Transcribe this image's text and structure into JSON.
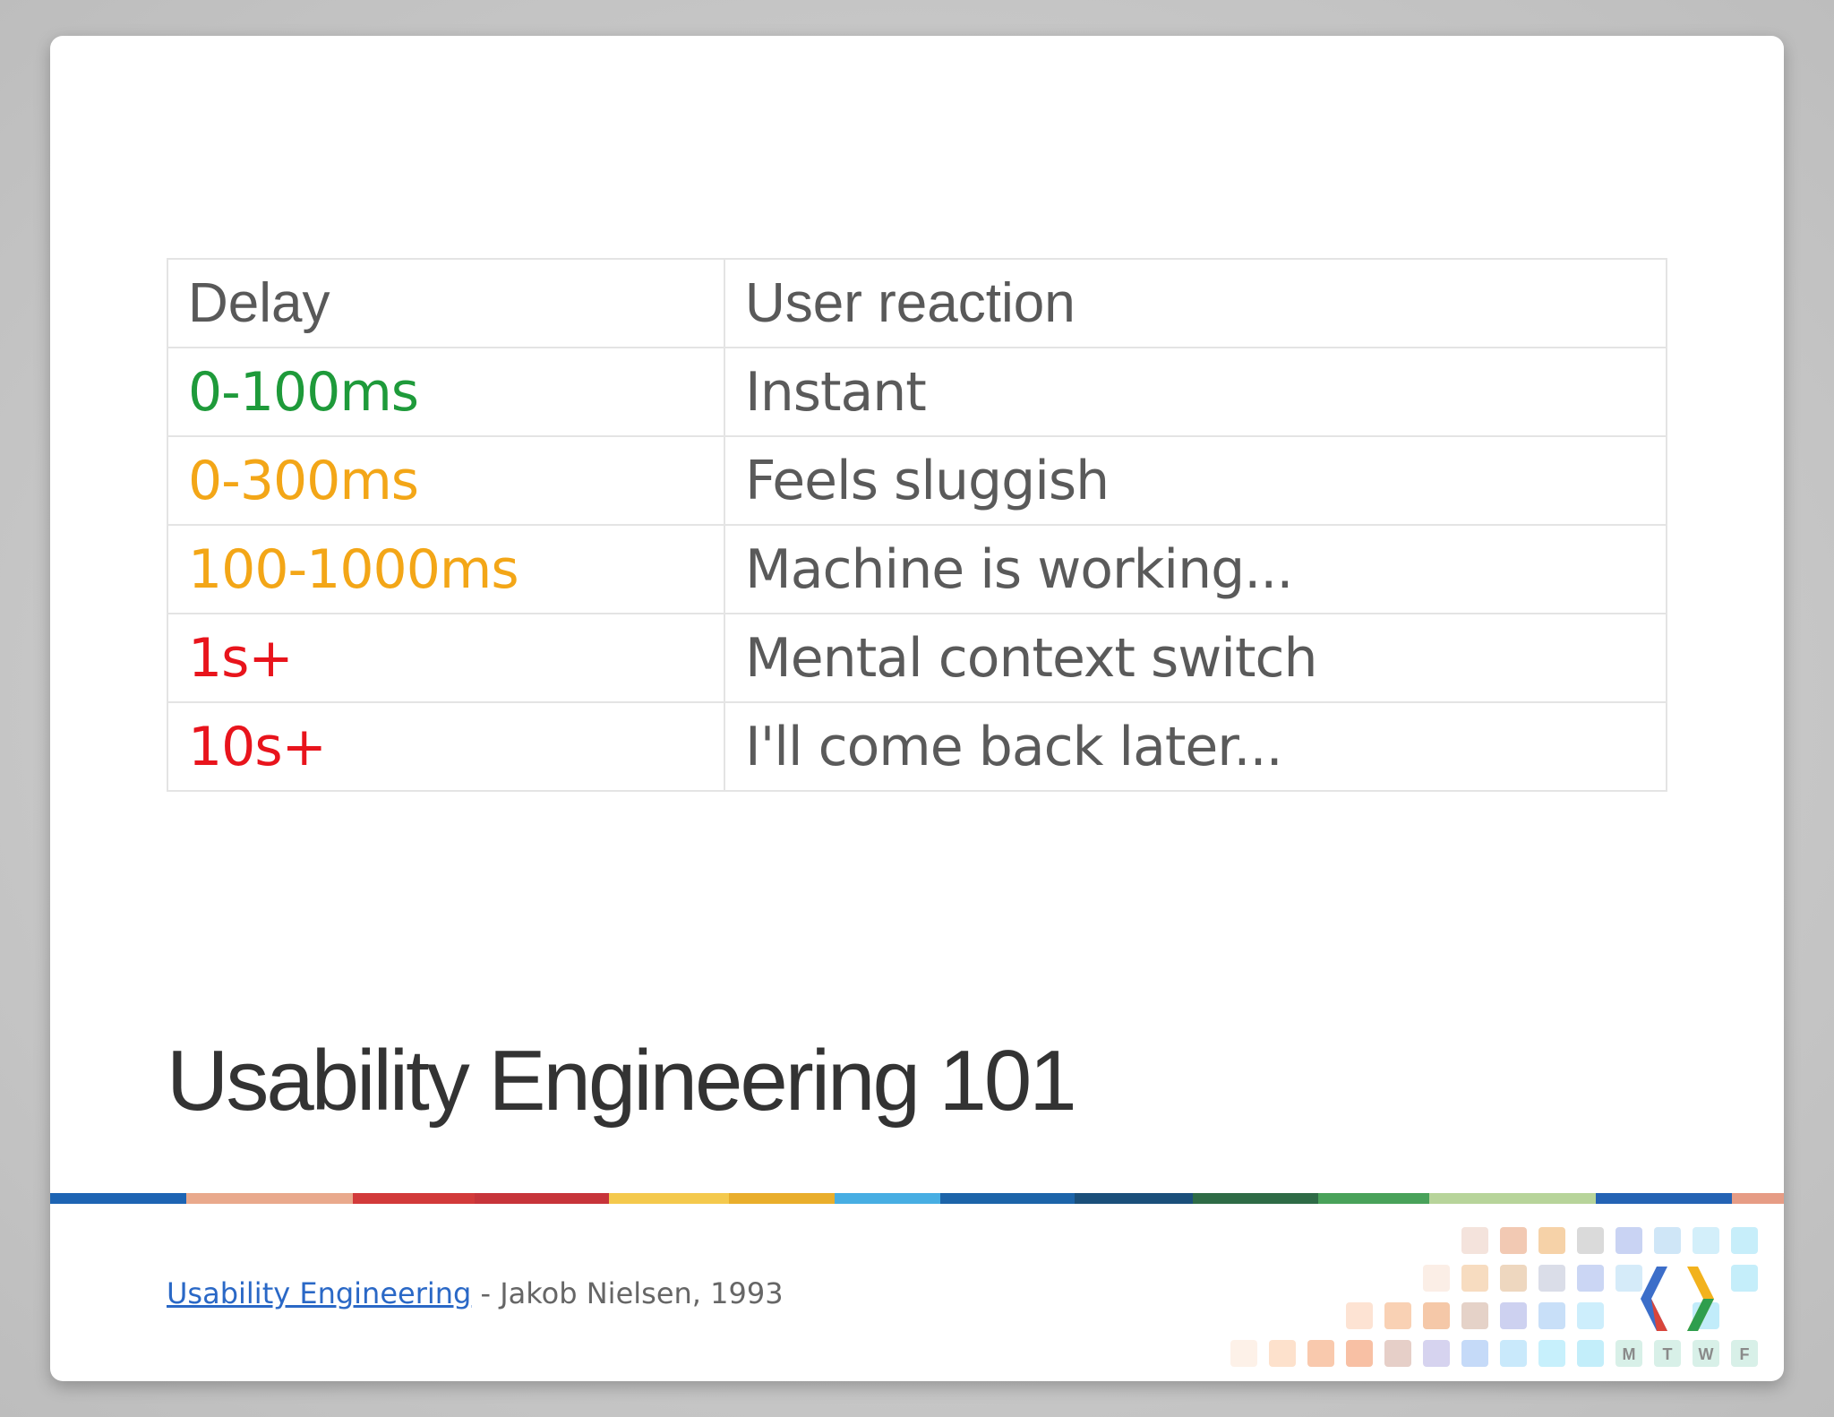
{
  "table": {
    "headers": [
      "Delay",
      "User reaction"
    ],
    "rows": [
      {
        "delay": "0-100ms",
        "reaction": "Instant",
        "color": "#1e9a3a"
      },
      {
        "delay": "0-300ms",
        "reaction": "Feels sluggish",
        "color": "#f3a617"
      },
      {
        "delay": "100-1000ms",
        "reaction": "Machine is working...",
        "color": "#f3a617"
      },
      {
        "delay": "1s+",
        "reaction": "Mental context switch",
        "color": "#e8141c"
      },
      {
        "delay": "10s+",
        "reaction": "I'll come back later...",
        "color": "#e8141c"
      }
    ]
  },
  "title": "Usability Engineering 101",
  "footer": {
    "link_text": "Usability Engineering",
    "suffix": " - Jakob Nielsen, 1993"
  },
  "logo": {
    "day_letters": [
      "M",
      "T",
      "W",
      "F"
    ]
  },
  "colors": {
    "bar": [
      "#1d64b3",
      "#e9a98c",
      "#d23a3a",
      "#c7343a",
      "#f4c94d",
      "#e9ae2c",
      "#47aee3",
      "#1c64a9",
      "#1a4f7a",
      "#2e6b46",
      "#49a25a",
      "#b7d49a",
      "#2463b4",
      "#e69c85"
    ]
  }
}
